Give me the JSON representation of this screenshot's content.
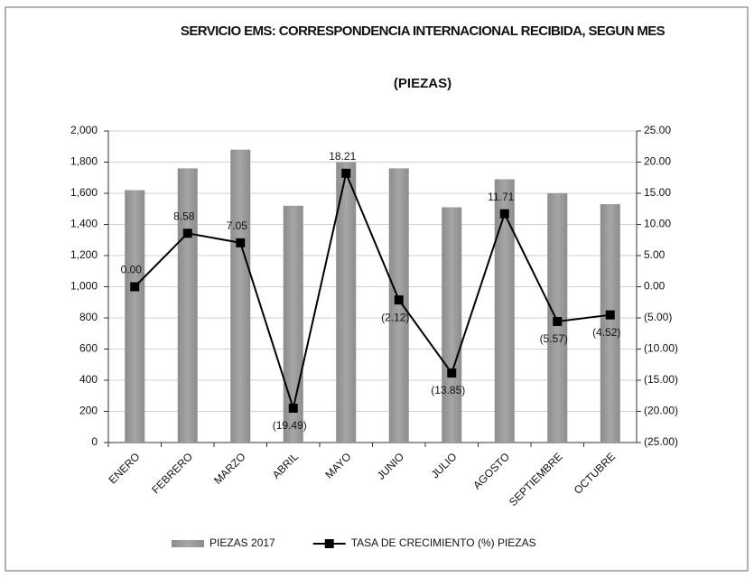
{
  "chart_data": {
    "type": "bar",
    "title": "SERVICIO EMS: CORRESPONDENCIA INTERNACIONAL RECIBIDA, SEGUN MES",
    "subtitle": "(PIEZAS)",
    "categories": [
      "ENERO",
      "FEBRERO",
      "MARZO",
      "ABRIL",
      "MAYO",
      "JUNIO",
      "JULIO",
      "AGOSTO",
      "SEPTIEMBRE",
      "OCTUBRE"
    ],
    "series": [
      {
        "name": "PIEZAS 2017",
        "type": "bar",
        "color": "#a6a6a6",
        "values": [
          1620,
          1760,
          1880,
          1520,
          1800,
          1760,
          1510,
          1690,
          1600,
          1530
        ]
      },
      {
        "name": "TASA DE CRECIMIENTO  (%) PIEZAS",
        "type": "line",
        "axis": "y2",
        "color": "#000000",
        "values": [
          0,
          8.58,
          7.05,
          -19.49,
          18.21,
          -2.12,
          -13.85,
          11.71,
          -5.57,
          -4.52
        ],
        "value_labels": [
          "0.00",
          "8.58",
          "7.05",
          "(19.49)",
          "18.21",
          "(2.12)",
          "(13.85)",
          "11.71",
          "(5.57)",
          "(4.52)"
        ]
      }
    ],
    "ylim": [
      0,
      2000
    ],
    "yticks": [
      0,
      200,
      400,
      600,
      800,
      {
        "value": 1000,
        "label": "1,000"
      },
      {
        "value": 1200,
        "label": "1,200"
      },
      {
        "value": 1400,
        "label": "1,400"
      },
      {
        "value": 1600,
        "label": "1,600"
      },
      {
        "value": 1800,
        "label": "1,800"
      },
      {
        "value": 2000,
        "label": "2,000"
      }
    ],
    "y2lim": [
      -25,
      25
    ],
    "y2ticks": [
      {
        "value": -25,
        "label": "(25.00)"
      },
      {
        "value": -20,
        "label": "(20.00)"
      },
      {
        "value": -15,
        "label": "(15.00)"
      },
      {
        "value": -10,
        "label": "(10.00)"
      },
      {
        "value": -5,
        "label": "(5.00)"
      },
      {
        "value": 0,
        "label": "0.00"
      },
      {
        "value": 5,
        "label": "5.00"
      },
      {
        "value": 10,
        "label": "10.00"
      },
      {
        "value": 15,
        "label": "15.00"
      },
      {
        "value": 20,
        "label": "20.00"
      },
      {
        "value": 25,
        "label": "25.00"
      }
    ],
    "grid": true,
    "legend": "bottom"
  }
}
